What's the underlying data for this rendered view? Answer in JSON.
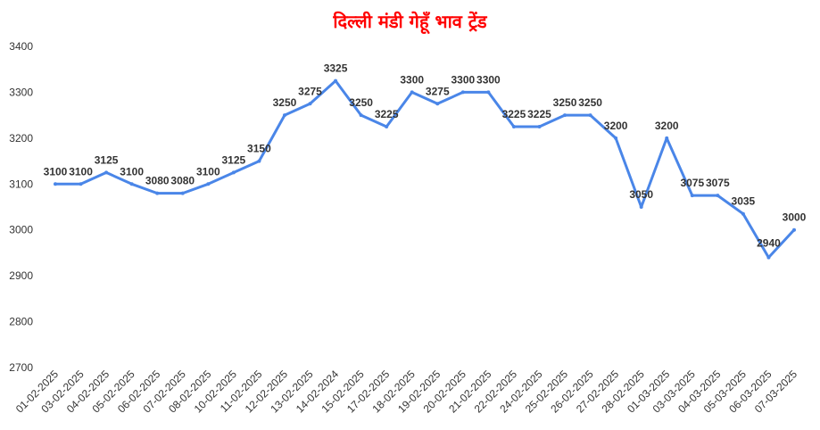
{
  "chart_data": {
    "type": "line",
    "title": "दिल्ली मंडी गेहूँ भाव ट्रेंड",
    "xlabel": "",
    "ylabel": "",
    "ylim": [
      2700,
      3400
    ],
    "yticks": [
      "3400",
      "3300",
      "3200",
      "3100",
      "3000",
      "2900",
      "2800",
      "2700"
    ],
    "grid": false,
    "legend": "none",
    "line_color": "#4A86E8",
    "title_color": "#FF0000",
    "categories": [
      "01-02-2025",
      "03-02-2025",
      "04-02-2025",
      "05-02-2025",
      "06-02-2025",
      "07-02-2025",
      "08-02-2025",
      "10-02-2025",
      "11-02-2025",
      "12-02-2025",
      "13-02-2025",
      "14-02-2024",
      "15-02-2025",
      "17-02-2025",
      "18-02-2025",
      "19-02-2025",
      "20-02-2025",
      "21-02-2025",
      "22-02-2025",
      "24-02-2025",
      "25-02-2025",
      "26-02-2025",
      "27-02-2025",
      "28-02-2025",
      "01-03-2025",
      "03-03-2025",
      "04-03-2025",
      "05-03-2025",
      "06-03-2025",
      "07-03-2025"
    ],
    "values": [
      3100,
      3100,
      3125,
      3100,
      3080,
      3080,
      3100,
      3125,
      3150,
      3250,
      3275,
      3325,
      3250,
      3225,
      3300,
      3275,
      3300,
      3300,
      3225,
      3225,
      3250,
      3250,
      3200,
      3050,
      3200,
      3075,
      3075,
      3035,
      2940,
      3000
    ],
    "data_labels": [
      "3100",
      "3100",
      "3125",
      "3100",
      "3080",
      "3080",
      "3100",
      "3125",
      "3150",
      "3250",
      "3275",
      "3325",
      "3250",
      "3225",
      "3300",
      "3275",
      "3300",
      "3300",
      "3225",
      "3225",
      "3250",
      "3250",
      "3200",
      "3050",
      "3200",
      "3075",
      "3075",
      "3035",
      "2940",
      "3000"
    ]
  }
}
